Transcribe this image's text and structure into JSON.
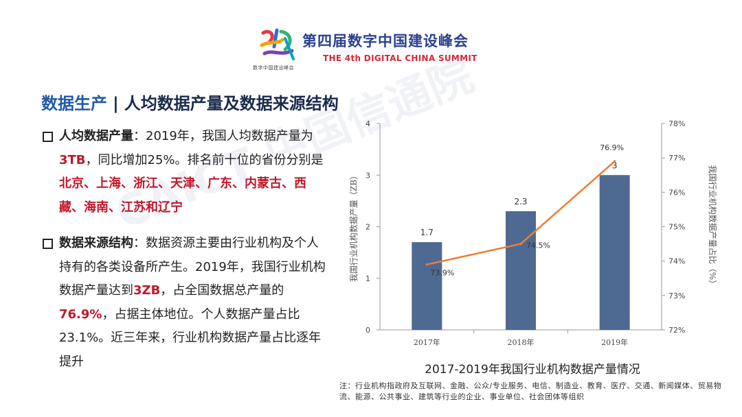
{
  "header": {
    "logo_sub": "数字中国建设峰会",
    "summit_cn": "第四届数字中国建设峰会",
    "summit_en": "THE 4th DIGITAL CHINA SUMMIT"
  },
  "watermark": "CAICT 中国信通院",
  "title": {
    "part1": "数据生产",
    "separator": "|",
    "part2": "人均数据产量及数据来源结构"
  },
  "bullets": [
    {
      "head": "人均数据产量",
      "s1": "：2019年，我国人均数据产量为",
      "h1": "3TB",
      "s2": "，同比增加25%。排名前十位的省份分别是",
      "h2": "北京、上海、浙江、天津、广东、内蒙古、西藏、海南、江苏和辽宁"
    },
    {
      "head": "数据来源结构",
      "s1": "：数据资源主要由行业机构及个人持有的各类设备所产生。2019年，我国行业机构数据产量达到",
      "h1": "3ZB",
      "s2": "，占全国数据总产量的",
      "h2": "76.9%",
      "s3": "，占据主体地位。个人数据产量占比23.1%。近三年来，行业机构数据产量占比逐年提升"
    }
  ],
  "chart_data": {
    "type": "bar",
    "title": "2017-2019年我国行业机构数据产量情况",
    "categories": [
      "2017年",
      "2018年",
      "2019年"
    ],
    "ylabel": "我国行业机构数据产量（ZB）",
    "y2label": "我国行业机构数据产量占比（%）",
    "ylim": [
      0,
      4
    ],
    "yticks": [
      "0",
      "1",
      "2",
      "3",
      "4"
    ],
    "y2lim": [
      72,
      78
    ],
    "y2ticks": [
      "72%",
      "73%",
      "74%",
      "75%",
      "76%",
      "77%",
      "78%"
    ],
    "series": [
      {
        "type": "bar",
        "values": [
          1.7,
          2.3,
          3
        ],
        "labels": [
          "1.7",
          "2.3",
          "3"
        ],
        "color": "#4e6a93"
      },
      {
        "type": "line",
        "axis": "right",
        "values": [
          73.9,
          74.5,
          76.9
        ],
        "labels": [
          "73.9%",
          "74.5%",
          "76.9%"
        ],
        "color": "#ed7d31"
      }
    ],
    "grid": false
  },
  "note": "注：行业机构指政府及互联网、金融、公众/专业服务、电信、制造业、教育、医疗、交通、新闻媒体、贸易物流、能源、公共事业、建筑等行业的企业、事业单位、社会团体等组织"
}
